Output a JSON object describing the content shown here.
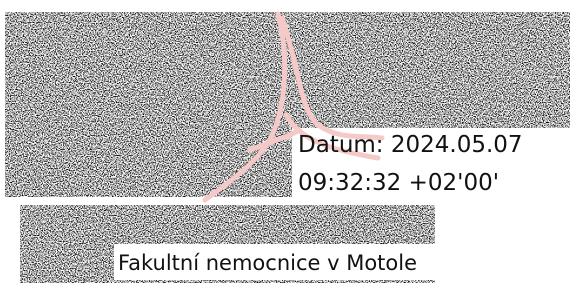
{
  "signature": {
    "date_line": "Datum: 2024.05.07",
    "time_line": "09:32:32 +02'00'",
    "signer": "Fakultní nemocnice v Motole"
  }
}
